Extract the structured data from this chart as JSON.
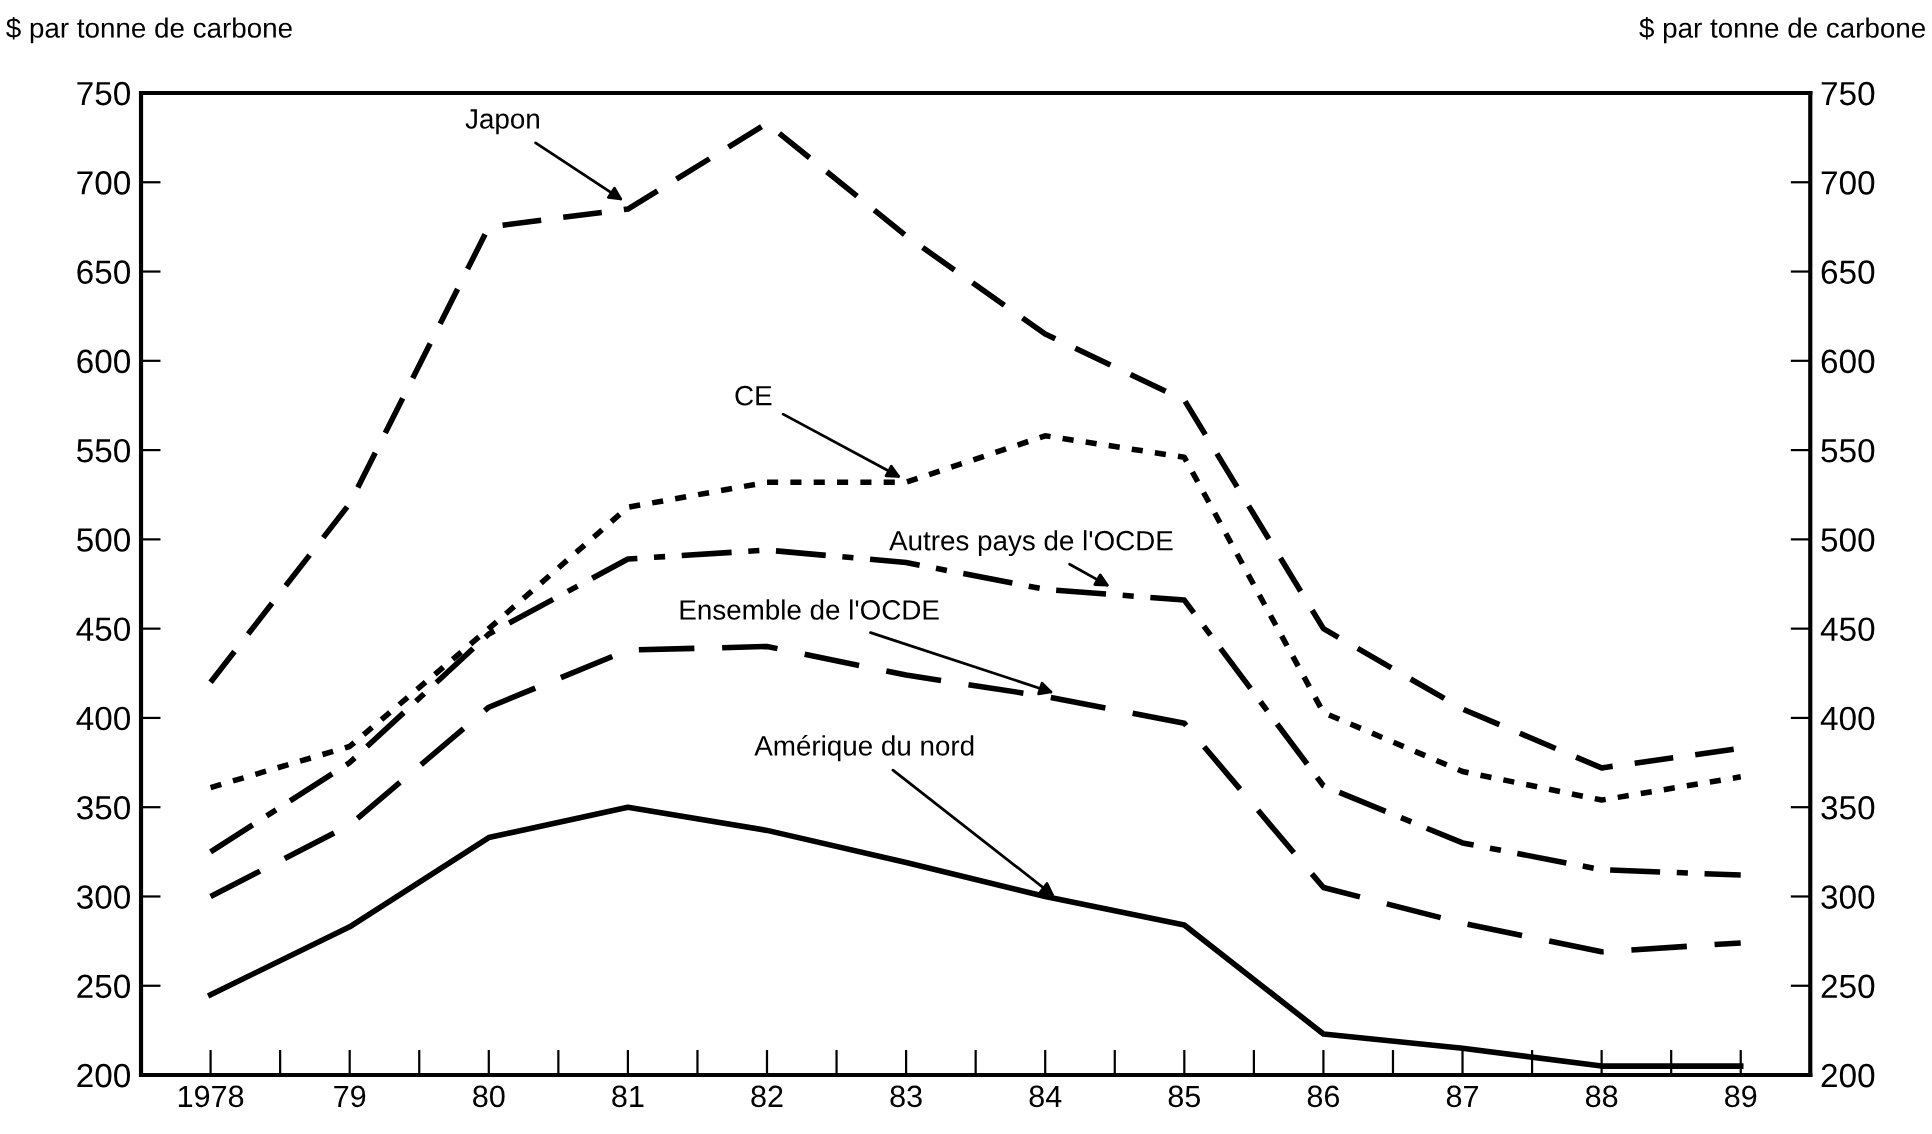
{
  "chart_data": {
    "type": "line",
    "ylabel": "$ par tonne de carbone",
    "y2label": "$ par tonne de carbone",
    "x": [
      1978,
      1979,
      1980,
      1981,
      1982,
      1983,
      1984,
      1985,
      1986,
      1987,
      1988,
      1989
    ],
    "series": [
      {
        "color": "#000000",
        "line_style": "solid",
        "values": [
          245,
          283,
          333,
          350,
          337,
          319,
          300,
          284,
          223,
          215,
          205,
          205
        ]
      },
      {
        "color": "#000000",
        "line_style": "longdash",
        "values": [
          300,
          340,
          406,
          438,
          440,
          424,
          412,
          397,
          305,
          285,
          269,
          274
        ]
      },
      {
        "color": "#000000",
        "line_style": "dashdot",
        "values": [
          325,
          375,
          447,
          489,
          494,
          487,
          472,
          466,
          362,
          330,
          315,
          312
        ]
      },
      {
        "color": "#000000",
        "line_style": "dotted",
        "values": [
          361,
          384,
          450,
          518,
          532,
          532,
          558,
          546,
          403,
          370,
          354,
          367
        ]
      },
      {
        "color": "#000000",
        "line_style": "dashed",
        "values": [
          420,
          520,
          675,
          685,
          733,
          670,
          615,
          578,
          450,
          405,
          372,
          383
        ]
      }
    ],
    "annotations": [
      {
        "text": "Japon",
        "x": 1981,
        "y": 688
      },
      {
        "text": "CE",
        "x": 1983,
        "y": 533
      },
      {
        "text": "Autres pays de l'OCDE",
        "x": 1984.5,
        "y": 472
      },
      {
        "text": "Ensemble de l'OCDE",
        "x": 1984.1,
        "y": 413
      },
      {
        "text": "Amérique du nord",
        "x": 1984.1,
        "y": 298
      }
    ],
    "xlim": [
      1977.5,
      1989.5
    ],
    "xticks": [
      {
        "value": 1978,
        "label": "1978"
      },
      {
        "value": 1978.5,
        "label": null
      },
      {
        "value": 1979,
        "label": "79"
      },
      {
        "value": 1979.5,
        "label": null
      },
      {
        "value": 1980,
        "label": "80"
      },
      {
        "value": 1980.5,
        "label": null
      },
      {
        "value": 1981,
        "label": "81"
      },
      {
        "value": 1981.5,
        "label": null
      },
      {
        "value": 1982,
        "label": "82"
      },
      {
        "value": 1982.5,
        "label": null
      },
      {
        "value": 1983,
        "label": "83"
      },
      {
        "value": 1983.5,
        "label": null
      },
      {
        "value": 1984,
        "label": "84"
      },
      {
        "value": 1984.5,
        "label": null
      },
      {
        "value": 1985,
        "label": "85"
      },
      {
        "value": 1985.5,
        "label": null
      },
      {
        "value": 1986,
        "label": "86"
      },
      {
        "value": 1986.5,
        "label": null
      },
      {
        "value": 1987,
        "label": "87"
      },
      {
        "value": 1987.5,
        "label": null
      },
      {
        "value": 1988,
        "label": "88"
      },
      {
        "value": 1988.5,
        "label": null
      },
      {
        "value": 1989,
        "label": "89"
      }
    ],
    "ylim": [
      200,
      750
    ],
    "yticks": [
      200,
      250,
      300,
      350,
      400,
      450,
      500,
      550,
      600,
      650,
      700,
      750
    ],
    "y2lim": [
      200,
      750
    ],
    "y2ticks": [
      200,
      250,
      300,
      350,
      400,
      450,
      500,
      550,
      600,
      650,
      700,
      750
    ],
    "grid": false,
    "legend": false
  }
}
